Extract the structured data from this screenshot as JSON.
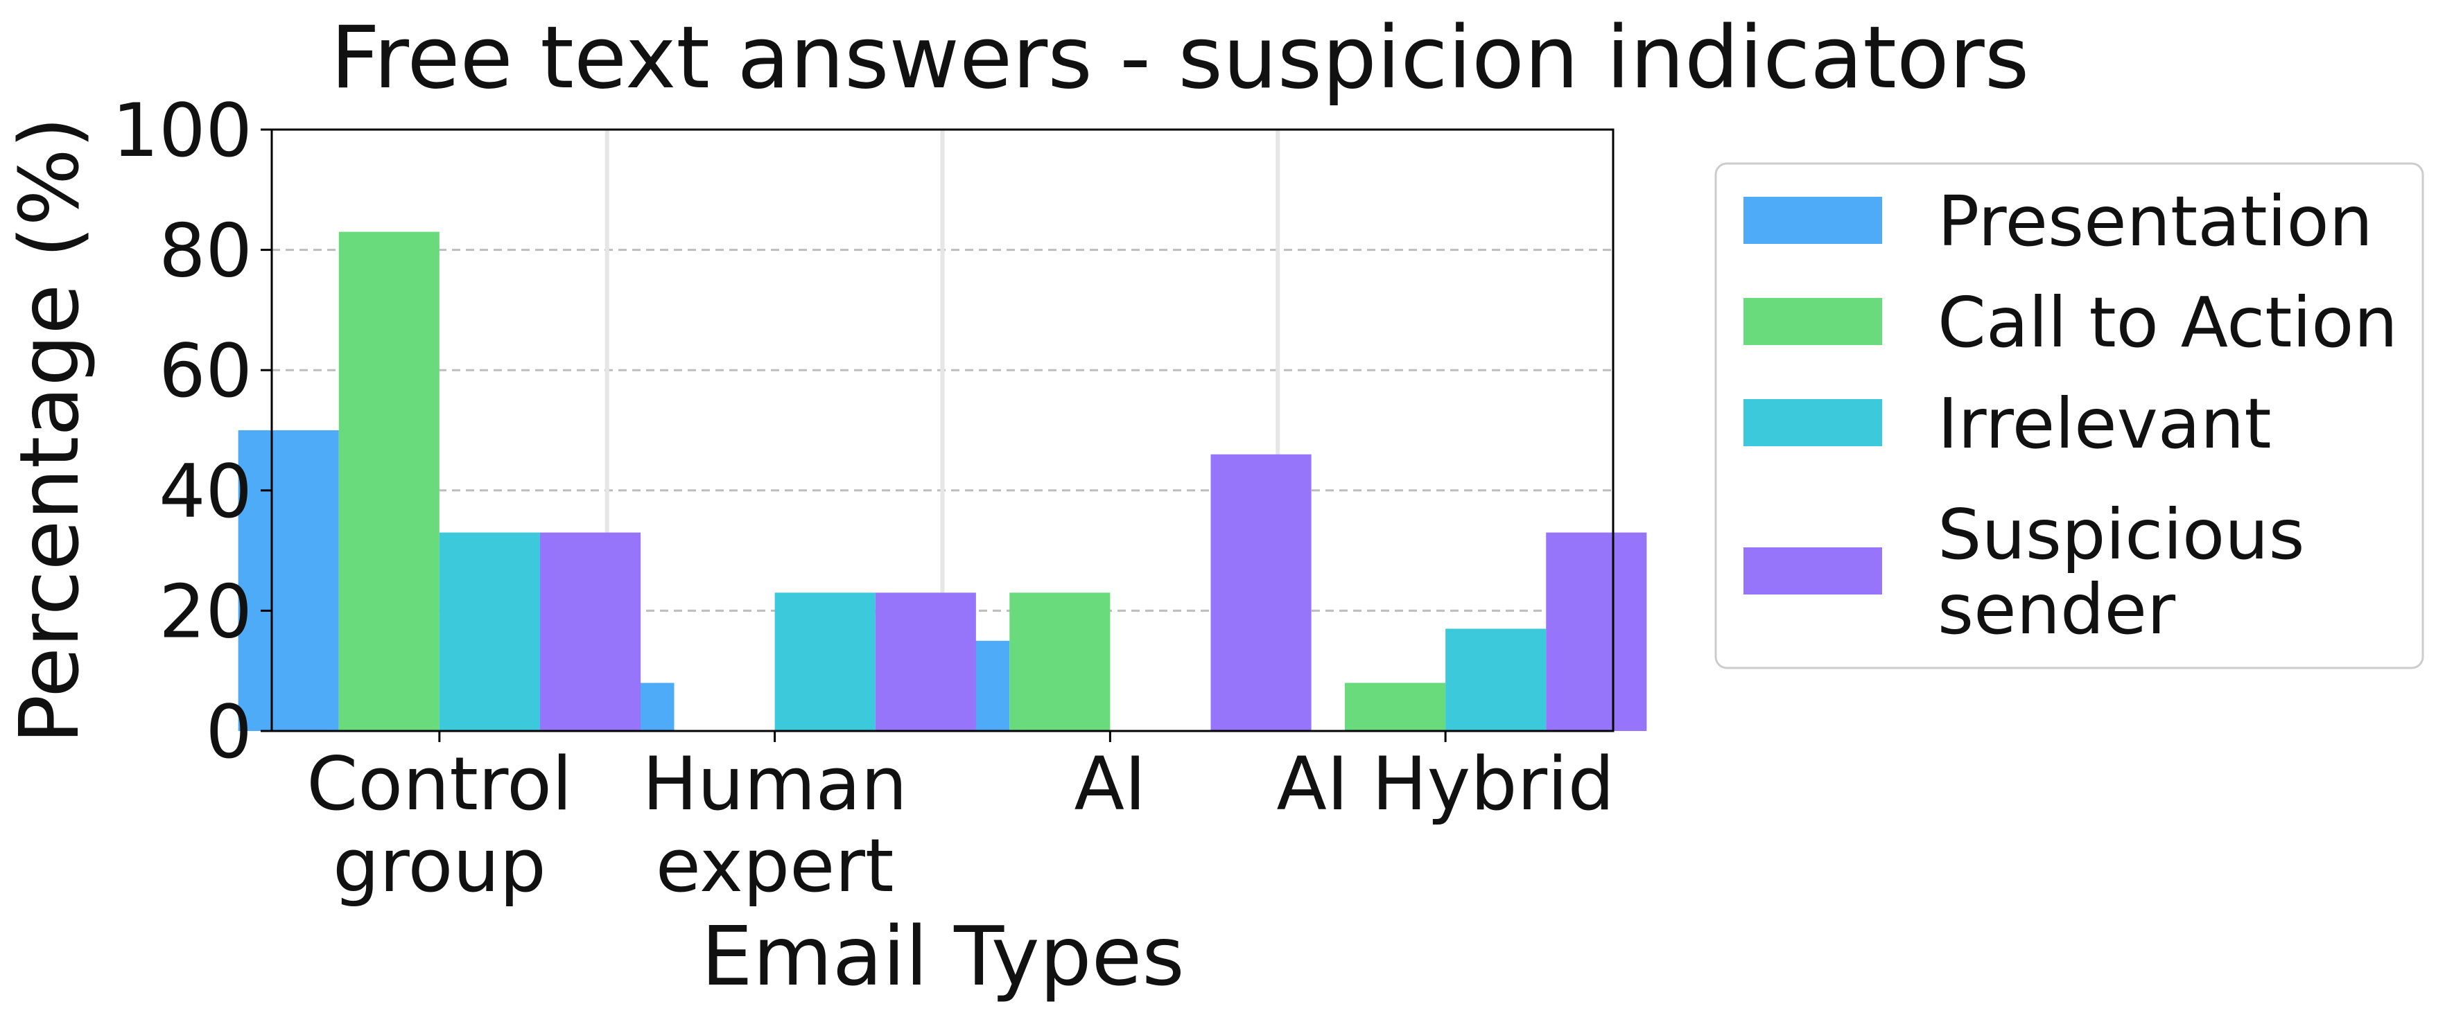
{
  "chart_data": {
    "type": "bar",
    "title": "Free text answers - suspicion indicators",
    "xlabel": "Email Types",
    "ylabel": "Percentage (%)",
    "ylim": [
      0,
      100
    ],
    "yticks": [
      0,
      20,
      40,
      60,
      80,
      100
    ],
    "grid": "horizontal dashed",
    "legend_position": "outside-right",
    "categories": [
      [
        "Control",
        "group"
      ],
      [
        "Human",
        "expert"
      ],
      [
        "AI"
      ],
      [
        "AI Hybrid"
      ]
    ],
    "series": [
      {
        "name": "Presentation",
        "color": "#4dabf7",
        "values": [
          50,
          8,
          15,
          0
        ]
      },
      {
        "name": "Call to Action",
        "color": "#69db7c",
        "values": [
          83,
          0,
          23,
          8
        ]
      },
      {
        "name": "Irrelevant",
        "color": "#3bc9db",
        "values": [
          33,
          23,
          0,
          17
        ]
      },
      {
        "name": [
          "Suspicious",
          "sender"
        ],
        "color": "#9775fa",
        "values": [
          33,
          23,
          46,
          33
        ]
      }
    ]
  }
}
